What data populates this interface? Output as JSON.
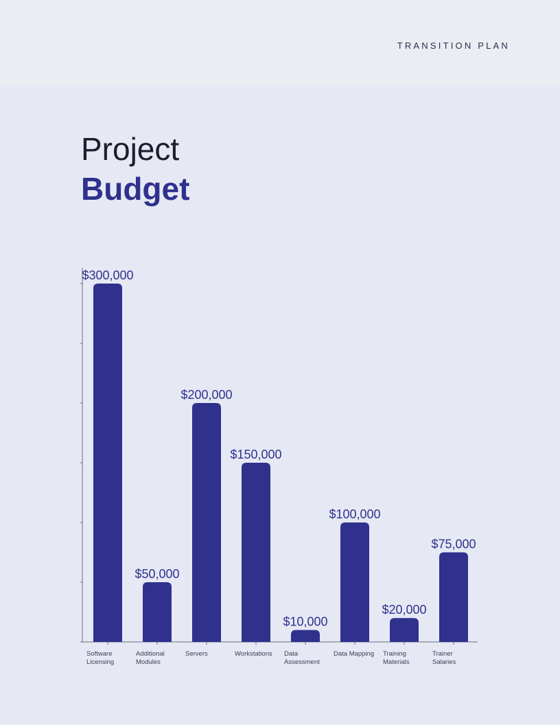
{
  "header": {
    "label": "TRANSITION  PLAN"
  },
  "title": {
    "line1": "Project",
    "line2": "Budget"
  },
  "colors": {
    "bar": "#2f318d",
    "accent": "#2f318d",
    "axis": "#6b6d80"
  },
  "chart_data": {
    "type": "bar",
    "categories": [
      [
        "Software",
        "Licensing"
      ],
      [
        "Additional",
        "Modules"
      ],
      [
        "Servers"
      ],
      [
        "Workstations"
      ],
      [
        "Data",
        "Assessment"
      ],
      [
        "Data Mapping"
      ],
      [
        "Training",
        "Materials"
      ],
      [
        "Trainer",
        "Salaries"
      ]
    ],
    "values": [
      300000,
      50000,
      200000,
      150000,
      10000,
      100000,
      20000,
      75000
    ],
    "data_labels": [
      "$300,000",
      "$50,000",
      "$200,000",
      "$150,000",
      "$10,000",
      "$100,000",
      "$20,000",
      "$75,000"
    ],
    "ylim": [
      0,
      300000
    ],
    "ytick_step": 50000,
    "grid": false,
    "xlabel": "",
    "ylabel": ""
  }
}
